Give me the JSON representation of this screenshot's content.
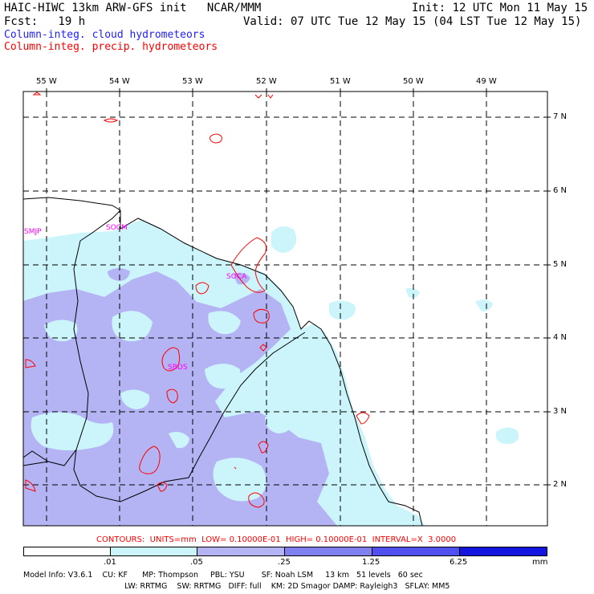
{
  "header": {
    "model_title": "HAIC-HIWC 13km ARW-GFS init   NCAR/MMM",
    "init_time": "Init: 12 UTC Mon 11 May 15",
    "forecast": "Fcst:   19 h",
    "valid_time": "Valid: 07 UTC Tue 12 May 15 (04 LST Tue 12 May 15)",
    "field_cloud": "Column-integ. cloud hydrometeors",
    "field_precip": "Column-integ. precip. hydrometeors"
  },
  "longitude_labels": [
    "55 W",
    "54 W",
    "53 W",
    "52 W",
    "51 W",
    "50 W",
    "49 W"
  ],
  "latitude_labels": [
    "7 N",
    "6 N",
    "5 N",
    "4 N",
    "3 N",
    "2 N"
  ],
  "station_labels": [
    "SMJP",
    "SOCM",
    "SOCA",
    "SBDS"
  ],
  "contours_line": "CONTOURS:  UNITS=mm  LOW= 0.10000E-01  HIGH= 0.10000E-01  INTERVAL=X  3.0000",
  "colorbar": {
    "tick_labels": [
      ".01",
      ".05",
      ".25",
      "1.25",
      "6.25"
    ],
    "unit": "mm",
    "colors": [
      "#ffffff",
      "#ccf5fb",
      "#b4b4f5",
      "#8080f0",
      "#5050ee",
      "#1515e0"
    ]
  },
  "model_info": {
    "line1": "Model Info: V3.6.1    CU: KF      MP: Thompson     PBL: YSU       SF: Noah LSM     13 km   51 levels   60 sec",
    "line2": "LW: RRTMG    SW: RRTMG   DIFF: full    KM: 2D Smagor DAMP: Rayleigh3   SFLAY: MM5"
  },
  "colors": {
    "cloud_light": "#ccf5fb",
    "cloud_medium": "#b4b4f5",
    "precip_contour": "#ff0000",
    "station": "#ff00ff",
    "coast": "#000000"
  }
}
